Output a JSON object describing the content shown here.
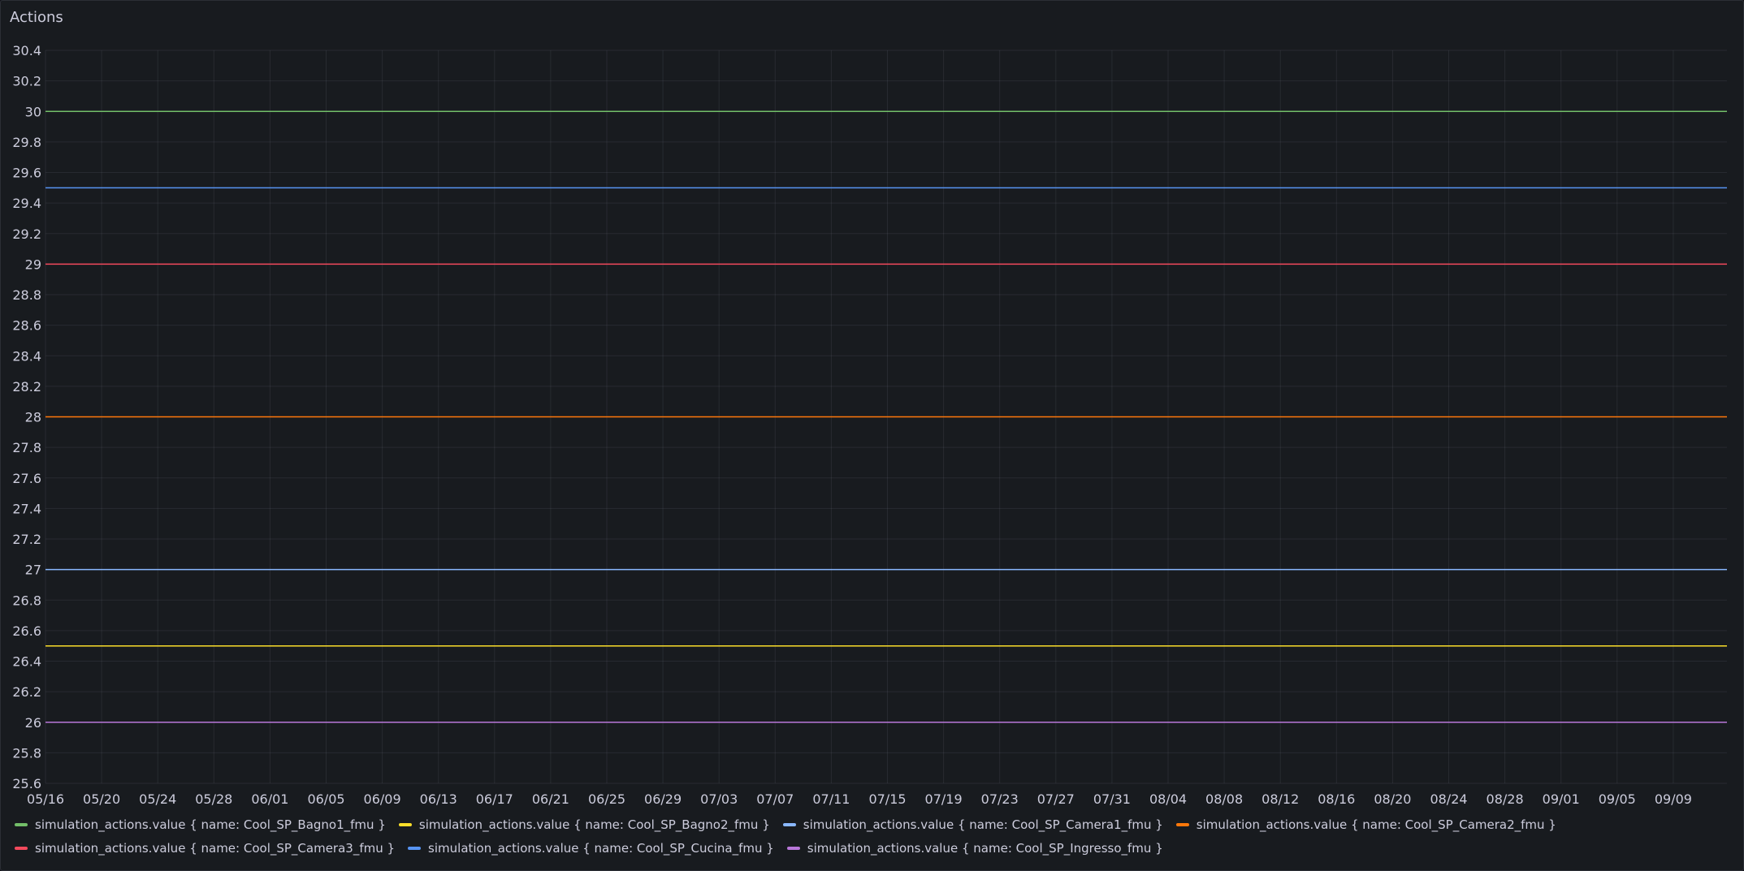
{
  "panel": {
    "title": "Actions"
  },
  "chart_data": {
    "type": "line",
    "title": "Actions",
    "xlabel": "",
    "ylabel": "",
    "ylim": [
      25.6,
      30.4
    ],
    "y_ticks": [
      "30.4",
      "30.2",
      "30",
      "29.8",
      "29.6",
      "29.4",
      "29.2",
      "29",
      "28.8",
      "28.6",
      "28.4",
      "28.2",
      "28",
      "27.8",
      "27.6",
      "27.4",
      "27.2",
      "27",
      "26.8",
      "26.6",
      "26.4",
      "26.2",
      "26",
      "25.8",
      "25.6"
    ],
    "x_ticks": [
      "05/16",
      "05/20",
      "05/24",
      "05/28",
      "06/01",
      "06/05",
      "06/09",
      "06/13",
      "06/17",
      "06/21",
      "06/25",
      "06/29",
      "07/03",
      "07/07",
      "07/11",
      "07/15",
      "07/19",
      "07/23",
      "07/27",
      "07/31",
      "08/04",
      "08/08",
      "08/12",
      "08/16",
      "08/20",
      "08/24",
      "08/28",
      "09/01",
      "09/05",
      "09/09"
    ],
    "x_range": [
      "05/16",
      "09/13"
    ],
    "grid": true,
    "legend_position": "bottom",
    "series": [
      {
        "name": "simulation_actions.value { name: Cool_SP_Bagno1_fmu }",
        "color": "#73bf69",
        "x": [
          "05/16",
          "09/13"
        ],
        "values": [
          30,
          30
        ]
      },
      {
        "name": "simulation_actions.value { name: Cool_SP_Bagno2_fmu }",
        "color": "#fade2a",
        "x": [
          "05/16",
          "09/13"
        ],
        "values": [
          26.5,
          26.5
        ]
      },
      {
        "name": "simulation_actions.value { name: Cool_SP_Camera1_fmu }",
        "color": "#8ab8ff",
        "x": [
          "05/16",
          "09/13"
        ],
        "values": [
          27,
          27
        ]
      },
      {
        "name": "simulation_actions.value { name: Cool_SP_Camera2_fmu }",
        "color": "#ff780a",
        "x": [
          "05/16",
          "09/13"
        ],
        "values": [
          28,
          28
        ]
      },
      {
        "name": "simulation_actions.value { name: Cool_SP_Camera3_fmu }",
        "color": "#f2495c",
        "x": [
          "05/16",
          "09/13"
        ],
        "values": [
          29,
          29
        ]
      },
      {
        "name": "simulation_actions.value { name: Cool_SP_Cucina_fmu }",
        "color": "#5794f2",
        "x": [
          "05/16",
          "09/13"
        ],
        "values": [
          29.5,
          29.5
        ]
      },
      {
        "name": "simulation_actions.value { name: Cool_SP_Ingresso_fmu }",
        "color": "#b877d9",
        "x": [
          "05/16",
          "09/13"
        ],
        "values": [
          26,
          26
        ]
      }
    ]
  }
}
